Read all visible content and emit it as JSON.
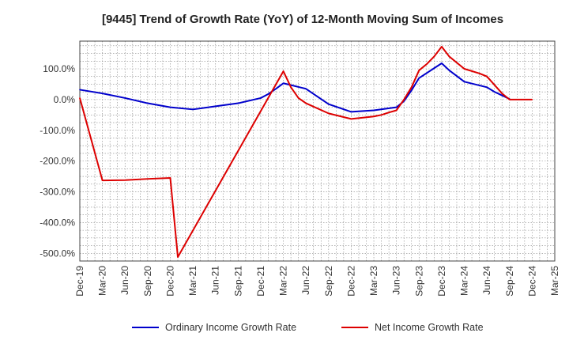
{
  "chart_data": {
    "type": "line",
    "title": "[9445]  Trend of Growth Rate (YoY) of 12-Month Moving Sum of Incomes",
    "xlabel": "",
    "ylabel": "",
    "ylim": [
      -525,
      190
    ],
    "yticks": [
      100,
      0,
      -100,
      -200,
      -300,
      -400,
      -500
    ],
    "ytick_labels": [
      "100.0%",
      "0.0%",
      "-100.0%",
      "-200.0%",
      "-300.0%",
      "-400.0%",
      "-500.0%"
    ],
    "xticks": [
      "Dec-19",
      "Mar-20",
      "Jun-20",
      "Sep-20",
      "Dec-20",
      "Mar-21",
      "Jun-21",
      "Sep-21",
      "Dec-21",
      "Mar-22",
      "Jun-22",
      "Sep-22",
      "Dec-22",
      "Mar-23",
      "Jun-23",
      "Sep-23",
      "Dec-23",
      "Mar-24",
      "Jun-24",
      "Sep-24",
      "Dec-24",
      "Mar-25"
    ],
    "grid": true,
    "legend_position": "bottom",
    "series": [
      {
        "name": "Ordinary Income Growth Rate",
        "color": "#0000cc",
        "x": [
          "2019-12",
          "2020-03",
          "2020-06",
          "2020-09",
          "2020-12",
          "2021-03",
          "2021-06",
          "2021-09",
          "2021-12",
          "2022-01",
          "2022-02",
          "2022-03",
          "2022-06",
          "2022-09",
          "2022-12",
          "2023-03",
          "2023-06",
          "2023-07",
          "2023-08",
          "2023-09",
          "2023-12",
          "2024-01",
          "2024-03",
          "2024-06",
          "2024-07",
          "2024-09"
        ],
        "values": [
          32,
          20,
          5,
          -12,
          -25,
          -32,
          -22,
          -12,
          5,
          18,
          35,
          53,
          35,
          -15,
          -40,
          -35,
          -25,
          -5,
          30,
          70,
          118,
          95,
          58,
          40,
          25,
          2
        ]
      },
      {
        "name": "Net Income Growth Rate",
        "color": "#dd0000",
        "x": [
          "2019-12",
          "2020-03",
          "2020-06",
          "2020-09",
          "2020-12",
          "2021-01",
          "2022-03",
          "2022-04",
          "2022-05",
          "2022-06",
          "2022-09",
          "2022-12",
          "2023-03",
          "2023-04",
          "2023-05",
          "2023-06",
          "2023-07",
          "2023-08",
          "2023-09",
          "2023-10",
          "2023-11",
          "2023-12",
          "2024-01",
          "2024-03",
          "2024-05",
          "2024-06",
          "2024-08",
          "2024-09",
          "2024-12"
        ],
        "values": [
          5,
          -263,
          -262,
          -258,
          -255,
          -512,
          92,
          40,
          5,
          -12,
          -45,
          -63,
          -55,
          -50,
          -42,
          -35,
          0,
          40,
          95,
          115,
          140,
          172,
          140,
          100,
          85,
          75,
          20,
          0,
          0
        ]
      }
    ]
  }
}
